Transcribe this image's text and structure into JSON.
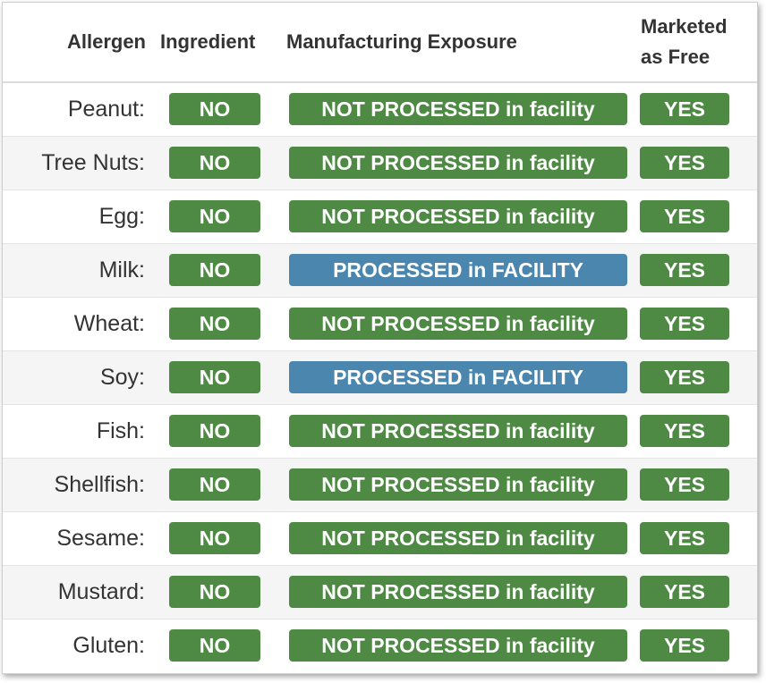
{
  "headers": {
    "allergen": "Allergen",
    "ingredient": "Ingredient",
    "exposure": "Manufacturing Exposure",
    "free_line1": "Marketed",
    "free_line2": "as Free"
  },
  "colors": {
    "green": "#4f8a45",
    "blue": "#4a86ad"
  },
  "rows": [
    {
      "allergen": "Peanut:",
      "ingredient": "NO",
      "exposure": "NOT PROCESSED in facility",
      "exposure_status": "green",
      "free": "YES"
    },
    {
      "allergen": "Tree Nuts:",
      "ingredient": "NO",
      "exposure": "NOT PROCESSED in facility",
      "exposure_status": "green",
      "free": "YES"
    },
    {
      "allergen": "Egg:",
      "ingredient": "NO",
      "exposure": "NOT PROCESSED in facility",
      "exposure_status": "green",
      "free": "YES"
    },
    {
      "allergen": "Milk:",
      "ingredient": "NO",
      "exposure": "PROCESSED in FACILITY",
      "exposure_status": "blue",
      "free": "YES"
    },
    {
      "allergen": "Wheat:",
      "ingredient": "NO",
      "exposure": "NOT PROCESSED in facility",
      "exposure_status": "green",
      "free": "YES"
    },
    {
      "allergen": "Soy:",
      "ingredient": "NO",
      "exposure": "PROCESSED in FACILITY",
      "exposure_status": "blue",
      "free": "YES"
    },
    {
      "allergen": "Fish:",
      "ingredient": "NO",
      "exposure": "NOT PROCESSED in facility",
      "exposure_status": "green",
      "free": "YES"
    },
    {
      "allergen": "Shellfish:",
      "ingredient": "NO",
      "exposure": "NOT PROCESSED in facility",
      "exposure_status": "green",
      "free": "YES"
    },
    {
      "allergen": "Sesame:",
      "ingredient": "NO",
      "exposure": "NOT PROCESSED in facility",
      "exposure_status": "green",
      "free": "YES"
    },
    {
      "allergen": "Mustard:",
      "ingredient": "NO",
      "exposure": "NOT PROCESSED in facility",
      "exposure_status": "green",
      "free": "YES"
    },
    {
      "allergen": "Gluten:",
      "ingredient": "NO",
      "exposure": "NOT PROCESSED in facility",
      "exposure_status": "green",
      "free": "YES"
    }
  ]
}
